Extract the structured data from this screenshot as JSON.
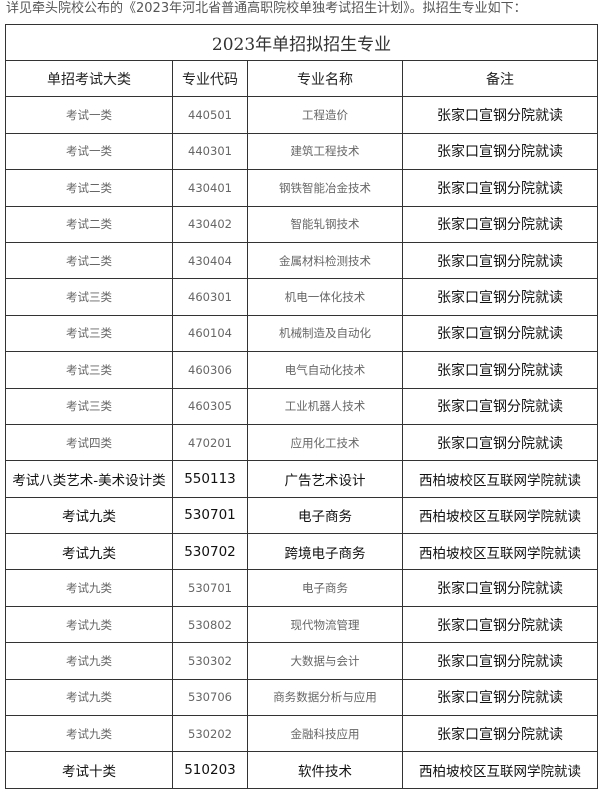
{
  "intro": "详见牵头院校公布的《2023年河北省普通高职院校单独考试招生计划》。拟招生专业如下：",
  "table": {
    "title": "2023年单招拟招生专业",
    "headers": [
      "单招考试大类",
      "专业代码",
      "专业名称",
      "备注"
    ],
    "rows": [
      {
        "cat": "考试一类",
        "code": "440501",
        "name": "工程造价",
        "note": "张家口宣钢分院就读",
        "style": "s"
      },
      {
        "cat": "考试一类",
        "code": "440301",
        "name": "建筑工程技术",
        "note": "张家口宣钢分院就读",
        "style": "s"
      },
      {
        "cat": "考试二类",
        "code": "430401",
        "name": "钢铁智能冶金技术",
        "note": "张家口宣钢分院就读",
        "style": "s"
      },
      {
        "cat": "考试二类",
        "code": "430402",
        "name": "智能轧钢技术",
        "note": "张家口宣钢分院就读",
        "style": "s"
      },
      {
        "cat": "考试二类",
        "code": "430404",
        "name": "金属材料检测技术",
        "note": "张家口宣钢分院就读",
        "style": "s"
      },
      {
        "cat": "考试三类",
        "code": "460301",
        "name": "机电一体化技术",
        "note": "张家口宣钢分院就读",
        "style": "s"
      },
      {
        "cat": "考试三类",
        "code": "460104",
        "name": "机械制造及自动化",
        "note": "张家口宣钢分院就读",
        "style": "s"
      },
      {
        "cat": "考试三类",
        "code": "460306",
        "name": "电气自动化技术",
        "note": "张家口宣钢分院就读",
        "style": "s"
      },
      {
        "cat": "考试三类",
        "code": "460305",
        "name": "工业机器人技术",
        "note": "张家口宣钢分院就读",
        "style": "s"
      },
      {
        "cat": "考试四类",
        "code": "470201",
        "name": "应用化工技术",
        "note": "张家口宣钢分院就读",
        "style": "s"
      },
      {
        "cat": "考试八类艺术-美术设计类",
        "code": "550113",
        "name": "广告艺术设计",
        "note": "西柏坡校区互联网学院就读",
        "style": "b"
      },
      {
        "cat": "考试九类",
        "code": "530701",
        "name": "电子商务",
        "note": "西柏坡校区互联网学院就读",
        "style": "b"
      },
      {
        "cat": "考试九类",
        "code": "530702",
        "name": "跨境电子商务",
        "note": "西柏坡校区互联网学院就读",
        "style": "b"
      },
      {
        "cat": "考试九类",
        "code": "530701",
        "name": "电子商务",
        "note": "张家口宣钢分院就读",
        "style": "s"
      },
      {
        "cat": "考试九类",
        "code": "530802",
        "name": "现代物流管理",
        "note": "张家口宣钢分院就读",
        "style": "s"
      },
      {
        "cat": "考试九类",
        "code": "530302",
        "name": "大数据与会计",
        "note": "张家口宣钢分院就读",
        "style": "s"
      },
      {
        "cat": "考试九类",
        "code": "530706",
        "name": "商务数据分析与应用",
        "note": "张家口宣钢分院就读",
        "style": "s"
      },
      {
        "cat": "考试九类",
        "code": "530202",
        "name": "金融科技应用",
        "note": "张家口宣钢分院就读",
        "style": "s"
      },
      {
        "cat": "考试十类",
        "code": "510203",
        "name": "软件技术",
        "note": "西柏坡校区互联网学院就读",
        "style": "b"
      }
    ]
  }
}
